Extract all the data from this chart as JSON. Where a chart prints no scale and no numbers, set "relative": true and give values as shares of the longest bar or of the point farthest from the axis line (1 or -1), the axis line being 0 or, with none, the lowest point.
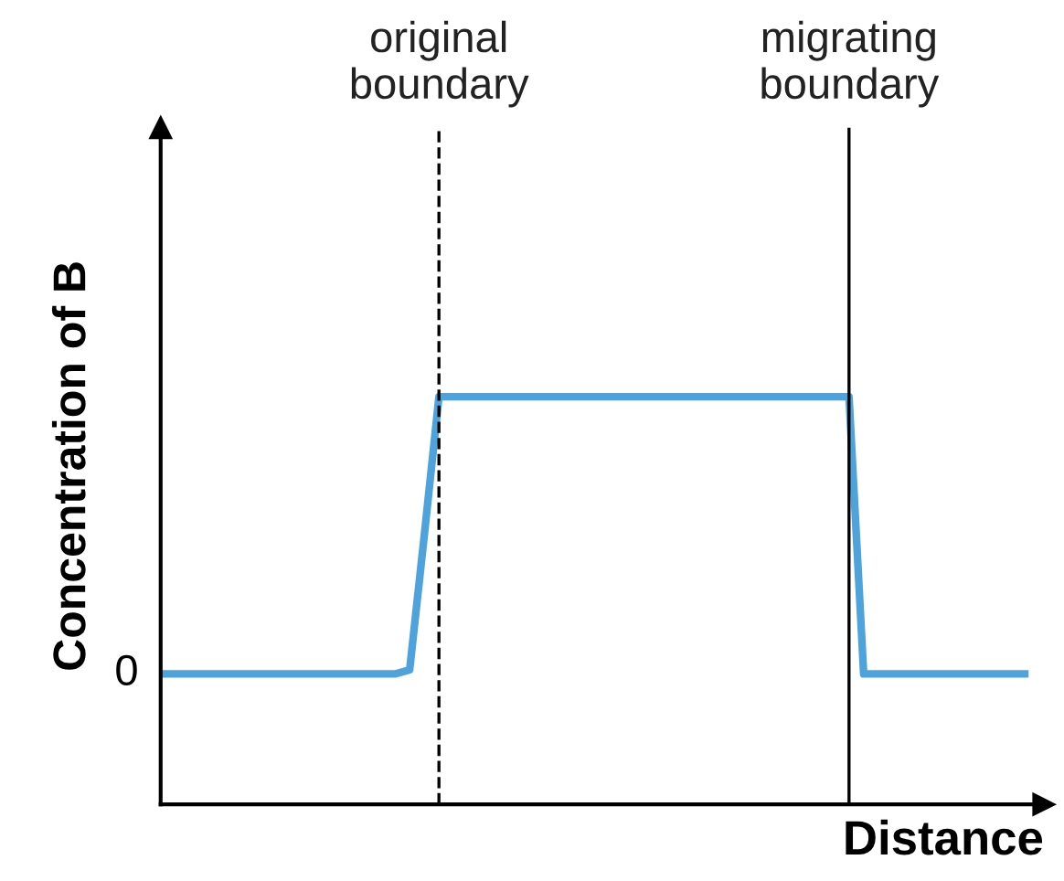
{
  "chart_data": {
    "type": "line",
    "relative": true,
    "xlabel": "Distance",
    "ylabel": "Concentration of B",
    "categories": [
      null,
      null,
      null,
      null,
      null,
      null,
      null,
      null,
      null,
      null,
      null,
      null,
      null,
      null,
      null,
      null,
      null,
      null,
      null,
      null,
      null,
      null,
      null,
      null,
      null,
      null,
      null,
      null,
      null,
      null,
      null,
      null,
      null,
      null,
      null,
      null,
      null,
      null,
      null,
      null,
      null,
      null,
      null,
      null,
      null,
      null,
      null,
      null,
      null,
      null,
      null,
      null,
      null,
      null,
      null,
      null,
      null,
      null,
      null,
      null
    ],
    "series": [
      {
        "color": "#4fa3dc",
        "values": [
          0.32,
          0.32,
          0.32,
          0.32,
          0.32,
          0.32,
          0.32,
          0.32,
          0.32,
          0.32,
          0.32,
          0.32,
          0.32,
          0.32,
          0.32,
          0.32,
          0.32,
          0.33,
          0.66,
          1,
          1,
          1,
          1,
          1,
          1,
          1,
          1,
          1,
          1,
          1,
          1,
          1,
          1,
          1,
          1,
          1,
          1,
          1,
          1,
          1,
          1,
          1,
          1,
          1,
          1,
          1,
          1,
          1,
          0.32,
          0.32,
          0.32,
          0.32,
          0.32,
          0.32,
          0.32,
          0.32,
          0.32,
          0.32,
          0.32,
          0.32
        ]
      }
    ],
    "marker": "none",
    "line_style": "solid",
    "annotations": [
      "original\nboundary",
      "migrating\nboundary",
      "0"
    ]
  }
}
